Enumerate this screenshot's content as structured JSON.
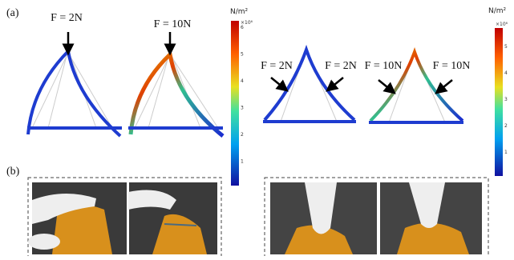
{
  "panel_a": {
    "label": "(a)",
    "left": {
      "forces": [
        "F = 2N",
        "F = 10N"
      ],
      "colorbar": {
        "unit": "N/m²",
        "scale": "×10⁶",
        "ticks": [
          6,
          5,
          4,
          3,
          2,
          1
        ]
      }
    },
    "right": {
      "forces": [
        "F = 2N",
        "F = 2N",
        "F = 10N",
        "F = 10N"
      ],
      "colorbar": {
        "unit": "N/m²",
        "scale": "×10⁶",
        "ticks": [
          5,
          4,
          3,
          2,
          1
        ]
      }
    }
  },
  "panel_b": {
    "label": "(b)"
  }
}
